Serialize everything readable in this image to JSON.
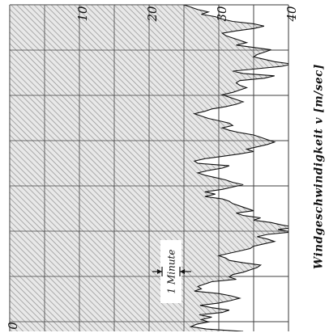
{
  "chart_data": {
    "type": "area",
    "orientation": "rotated-90-ccw",
    "ylabel": "Windgeschwindigkeit v  [m/sec]",
    "ylim": [
      0,
      40
    ],
    "yticks": [
      0,
      10,
      20,
      30,
      40
    ],
    "grid": true,
    "annotation": "1 Minute",
    "series": [
      {
        "values": [
          33.5,
          28.2,
          26.0,
          26.8,
          28.5,
          27.5,
          29.0,
          27.2,
          30.5,
          31.5,
          29.0,
          27.3,
          30.0,
          31.7,
          33.0,
          31.8,
          30.0,
          26.5,
          27.5,
          27.0,
          28.0,
          29.0,
          32.5,
          31.5,
          32.0,
          33.5,
          34.5,
          35.5,
          36.0,
          33.5,
          31.5,
          31.0,
          30.0,
          31.5,
          33.0,
          34.5,
          35.0,
          36.5,
          38.0,
          37.0,
          35.5,
          37.0,
          40.5,
          38.5,
          41.0,
          39.0,
          37.5,
          35.0,
          36.0,
          33.5,
          32.5,
          35.0,
          34.0,
          33.0,
          32.0,
          31.5,
          30.5,
          28.0,
          29.5,
          28.0,
          30.5,
          32.0,
          33.5,
          32.0,
          31.0,
          29.5,
          28.0,
          27.0,
          28.5,
          30.5,
          31.5,
          27.0,
          26.5,
          28.0,
          30.5,
          33.0,
          35.0,
          34.0,
          35.5,
          37.0,
          38.0,
          37.0,
          36.0,
          35.0,
          33.0,
          31.5,
          30.5,
          32.0,
          31.5,
          30.0,
          28.5,
          27.5,
          26.5,
          28.0,
          29.0,
          31.0,
          32.5,
          33.5,
          32.5,
          31.5,
          30.5,
          32.0,
          33.0,
          34.0,
          33.0,
          32.5,
          33.0,
          36.5,
          38.0,
          33.5,
          32.0,
          35.5,
          39.0,
          40.5,
          38.0,
          36.5,
          35.0,
          35.5,
          36.5,
          37.5,
          35.0,
          32.5,
          34.0,
          33.0,
          32.0,
          31.0,
          30.5,
          32.5,
          35.0,
          36.5,
          35.0,
          32.0,
          30.5,
          29.5,
          27.5,
          28.5,
          27.0,
          26.0,
          25.0
        ]
      }
    ]
  }
}
